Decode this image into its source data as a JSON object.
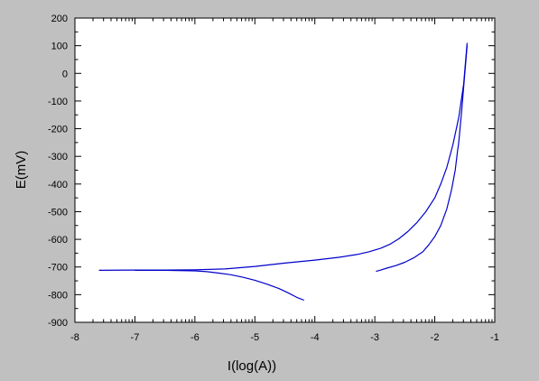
{
  "chart_data": {
    "type": "line",
    "title": "",
    "xlabel": "I(log(A))",
    "ylabel": "E(mV)",
    "xlim": [
      -8,
      -1
    ],
    "ylim": [
      -900,
      200
    ],
    "x_ticks": [
      -8,
      -7,
      -6,
      -5,
      -4,
      -3,
      -2,
      -1
    ],
    "y_ticks": [
      200,
      100,
      0,
      -100,
      -200,
      -300,
      -400,
      -500,
      -600,
      -700,
      -800,
      -900
    ],
    "grid": false,
    "legend": "none",
    "plot_background": "#ffffff",
    "page_background": "#c0c0c0",
    "series_color": "#0000cc",
    "series": [
      {
        "x": [
          -4.18,
          -4.3,
          -4.45,
          -4.6,
          -4.8,
          -5.0,
          -5.2,
          -5.4,
          -5.6,
          -5.8,
          -6.0,
          -6.5,
          -7.0
        ],
        "y": [
          -820,
          -810,
          -793,
          -778,
          -762,
          -748,
          -737,
          -728,
          -722,
          -717,
          -714,
          -712,
          -712
        ]
      },
      {
        "x": [
          -7.6,
          -7.0,
          -6.5,
          -6.0,
          -5.5,
          -5.0,
          -4.5,
          -4.0,
          -3.6,
          -3.3,
          -3.1,
          -2.9,
          -2.75,
          -2.6,
          -2.45,
          -2.3,
          -2.15,
          -2.0,
          -1.9,
          -1.8,
          -1.7,
          -1.6,
          -1.52,
          -1.46
        ],
        "y": [
          -712,
          -711,
          -711,
          -710,
          -707,
          -698,
          -686,
          -675,
          -665,
          -655,
          -645,
          -632,
          -618,
          -598,
          -572,
          -540,
          -500,
          -450,
          -400,
          -340,
          -260,
          -160,
          -40,
          110
        ]
      },
      {
        "x": [
          -1.46,
          -1.5,
          -1.55,
          -1.6,
          -1.62,
          -1.66,
          -1.72,
          -1.8,
          -1.9,
          -2.0,
          -2.1,
          -2.2,
          -2.35,
          -2.5,
          -2.65,
          -2.8,
          -2.9,
          -2.98
        ],
        "y": [
          100,
          0,
          -130,
          -250,
          -280,
          -350,
          -420,
          -490,
          -550,
          -590,
          -620,
          -645,
          -667,
          -683,
          -695,
          -704,
          -711,
          -716
        ]
      }
    ]
  }
}
